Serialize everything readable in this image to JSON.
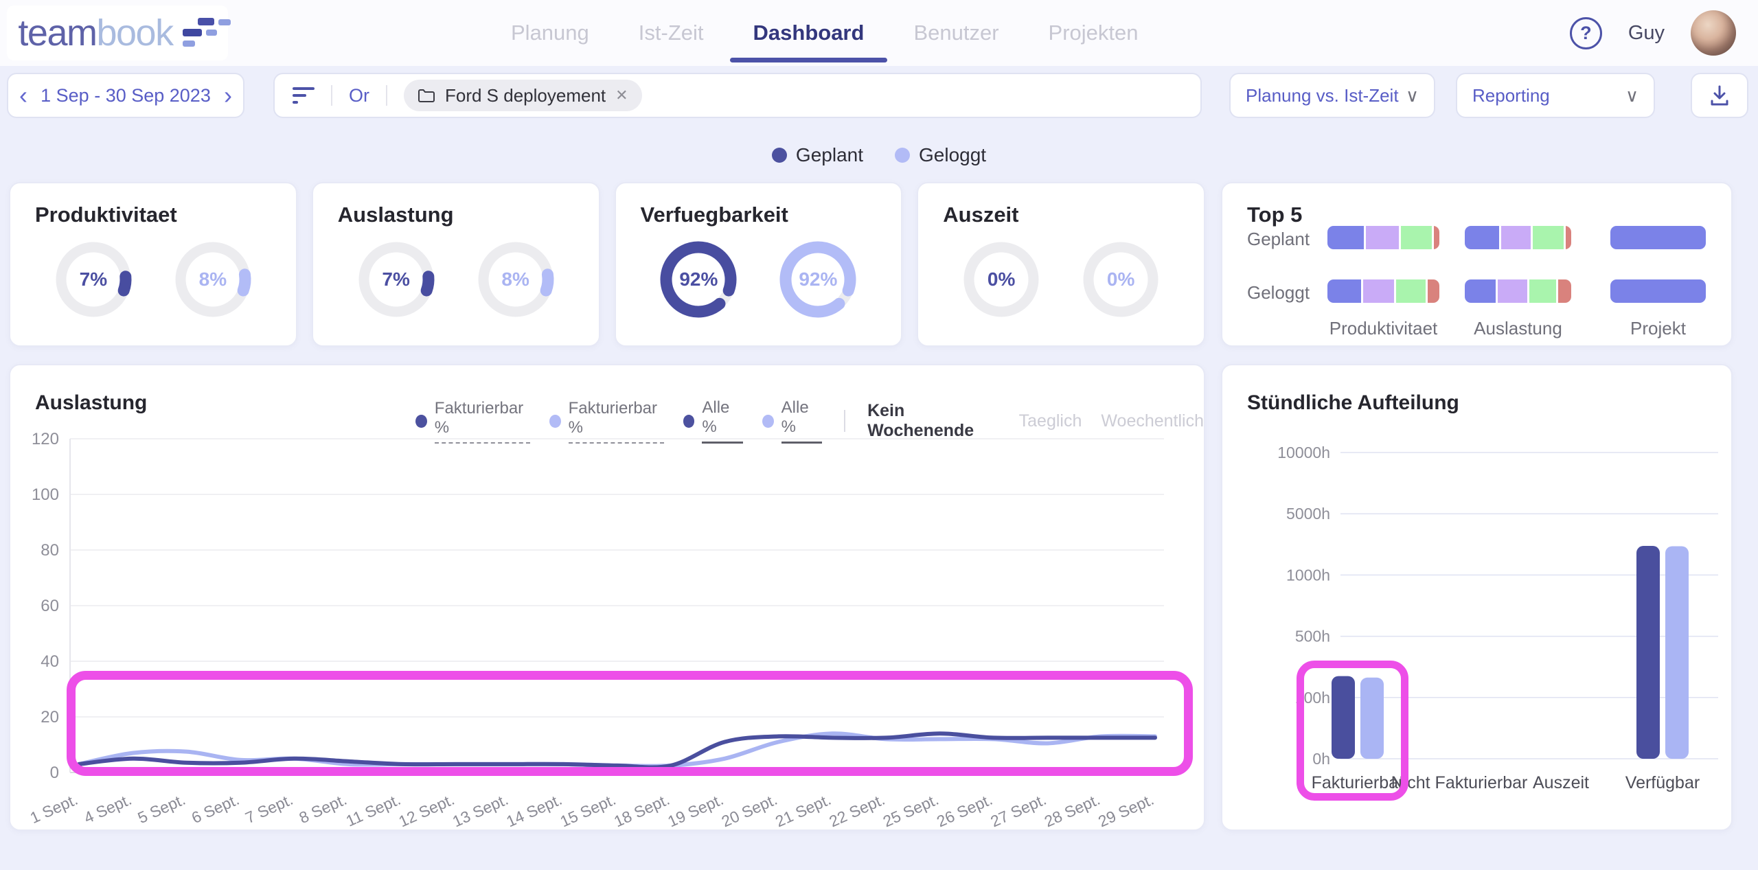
{
  "app": {
    "brand_team": "team",
    "brand_book": "book",
    "logo_icon": "gantt-grid-icon"
  },
  "nav": {
    "tabs": [
      {
        "label": "Planung",
        "active": false
      },
      {
        "label": "Ist-Zeit",
        "active": false
      },
      {
        "label": "Dashboard",
        "active": true
      },
      {
        "label": "Benutzer",
        "active": false
      },
      {
        "label": "Projekten",
        "active": false
      }
    ],
    "help_glyph": "?",
    "username": "Guy"
  },
  "filters": {
    "date_range": "1 Sep - 30 Sep 2023",
    "chevron_left": "‹",
    "chevron_right": "›",
    "operator": "Or",
    "project_tag": "Ford S deployement",
    "tag_close_glyph": "✕",
    "view_select": "Planung vs. Ist-Zeit",
    "report_select": "Reporting",
    "select_chevron": "∨"
  },
  "colors": {
    "planned": "#484da0",
    "logged": "#b2bcf7",
    "planned_text": "#4b4fa2",
    "logged_text": "#aab4f2",
    "ring_track": "#ececef",
    "highlight": "#ed4fe8",
    "accent": "#4c52a8"
  },
  "legend": [
    {
      "label": "Geplant",
      "color": "#4c519f"
    },
    {
      "label": "Geloggt",
      "color": "#b2bbf6"
    }
  ],
  "kpi_cards": [
    {
      "title": "Produktivitaet",
      "planned": {
        "label": "7%",
        "pct": 7
      },
      "logged": {
        "label": "8%",
        "pct": 8
      }
    },
    {
      "title": "Auslastung",
      "planned": {
        "label": "7%",
        "pct": 7
      },
      "logged": {
        "label": "8%",
        "pct": 8
      }
    },
    {
      "title": "Verfuegbarkeit",
      "planned": {
        "label": "92%",
        "pct": 92
      },
      "logged": {
        "label": "92%",
        "pct": 92
      }
    },
    {
      "title": "Auszeit",
      "planned": {
        "label": "0%",
        "pct": 0
      },
      "logged": {
        "label": "0%",
        "pct": 0
      }
    }
  ],
  "top5": {
    "title": "Top 5",
    "row_labels": [
      "Geplant",
      "Geloggt"
    ],
    "group_labels": [
      "Produktivitaet",
      "Auslastung",
      "Projekt"
    ],
    "segment_colors": [
      "#7b82e8",
      "#c9abf7",
      "#a9f4ad",
      "#d9827d"
    ],
    "project_color": "#7b82e8",
    "rows": [
      {
        "groups": [
          [
            34,
            30,
            29,
            5
          ],
          [
            33,
            29,
            30,
            5
          ],
          [
            100
          ]
        ]
      },
      {
        "groups": [
          [
            32,
            29,
            28,
            11
          ],
          [
            31,
            29,
            27,
            13
          ],
          [
            100
          ]
        ]
      }
    ]
  },
  "chart_data": [
    {
      "type": "line",
      "title": "Auslastung",
      "legend": [
        {
          "label": "Fakturierbar %",
          "color": "#4c519f",
          "underline": "dashed"
        },
        {
          "label": "Fakturierbar %",
          "color": "#b2bbf6",
          "underline": "dashed"
        },
        {
          "label": "Alle %",
          "color": "#4c519f",
          "underline": "solid"
        },
        {
          "label": "Alle %",
          "color": "#b2bbf6",
          "underline": "solid"
        }
      ],
      "modes": [
        {
          "label": "Kein Wochenende",
          "active": true
        },
        {
          "label": "Taeglich",
          "active": false
        },
        {
          "label": "Woechentlich",
          "active": false
        }
      ],
      "x": [
        "1 Sept.",
        "4 Sept.",
        "5 Sept.",
        "6 Sept.",
        "7 Sept.",
        "8 Sept.",
        "11 Sept.",
        "12 Sept.",
        "13 Sept.",
        "14 Sept.",
        "15 Sept.",
        "18 Sept.",
        "19 Sept.",
        "20 Sept.",
        "21 Sept.",
        "22 Sept.",
        "25 Sept.",
        "26 Sept.",
        "27 Sept.",
        "28 Sept.",
        "29 Sept."
      ],
      "ylim": [
        0,
        120
      ],
      "ytick_step": 20,
      "grid": true,
      "series": [
        {
          "name": "Geplant",
          "color": "#4a4f9e",
          "values": [
            3,
            5,
            3.5,
            3.5,
            5,
            4,
            3,
            3,
            3,
            3,
            2.5,
            2.5,
            11,
            13,
            12.5,
            12.5,
            14,
            12.5,
            12.5,
            12.5,
            12.5
          ]
        },
        {
          "name": "Geloggt",
          "color": "#a9b4f2",
          "values": [
            3,
            7,
            7.5,
            4.5,
            5,
            3,
            3,
            3,
            3,
            3,
            2.5,
            2.5,
            5,
            11,
            14,
            12,
            12,
            12,
            10.5,
            13,
            13
          ]
        }
      ],
      "annotation": "pink-highlight-box-around-lines"
    },
    {
      "type": "bar",
      "title": "Stündliche Aufteilung",
      "categories": [
        "Fakturierbar",
        "Nicht Fakturierbar",
        "Auszeit",
        "Verfügbar"
      ],
      "ytick_labels": [
        "0h",
        "100h",
        "500h",
        "1000h",
        "5000h",
        "10000h"
      ],
      "ytick_values": [
        0,
        100,
        500,
        1000,
        5000,
        10000
      ],
      "series": [
        {
          "name": "Geplant",
          "color": "#4a4f9e",
          "values": [
            240,
            0,
            0,
            2900
          ]
        },
        {
          "name": "Geloggt",
          "color": "#aab5f4",
          "values": [
            230,
            0,
            0,
            2880
          ]
        }
      ],
      "annotation": "pink-highlight-box-around-fakturierbar-bars"
    }
  ]
}
